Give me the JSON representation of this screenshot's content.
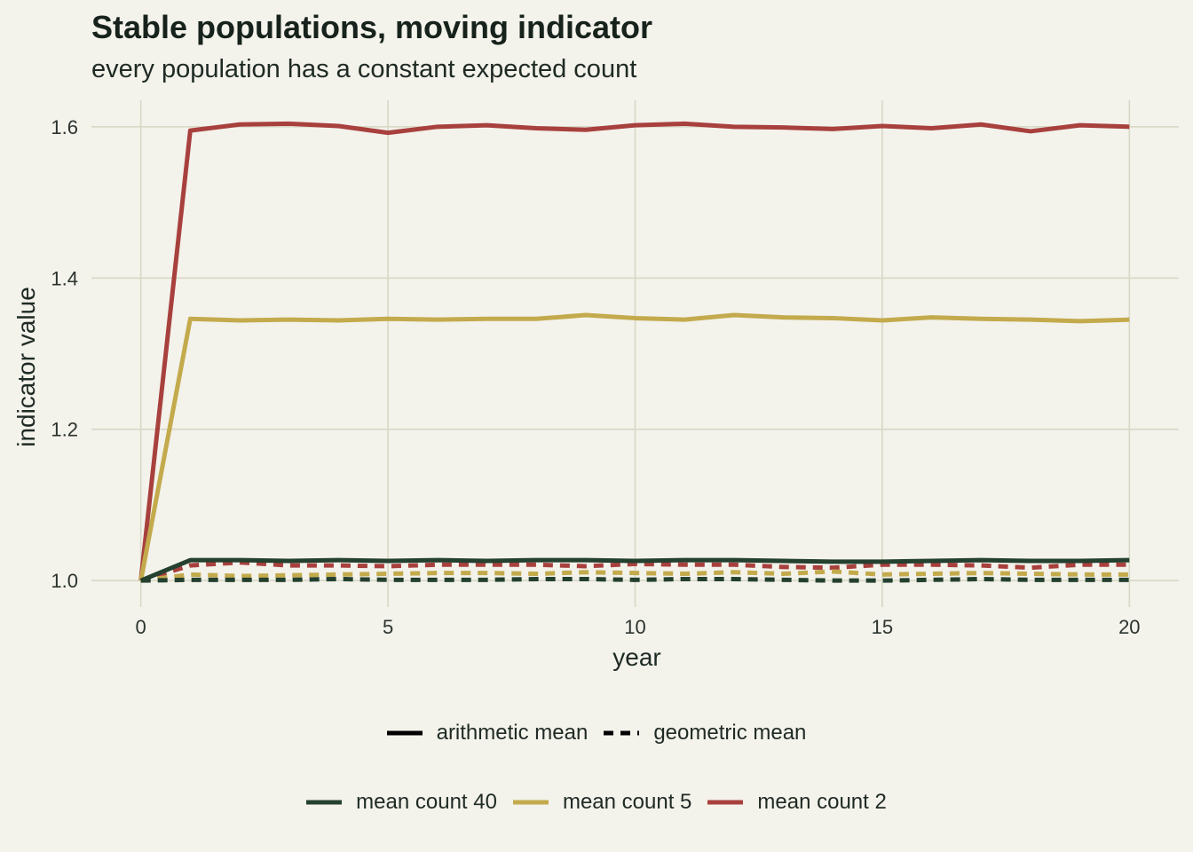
{
  "chart_data": {
    "type": "line",
    "title": "Stable populations, moving indicator",
    "subtitle": "every population has a constant expected count",
    "xlabel": "year",
    "ylabel": "indicator value",
    "xlim": [
      -1,
      21
    ],
    "ylim": [
      0.965,
      1.635
    ],
    "xticks": [
      0,
      5,
      10,
      15,
      20
    ],
    "yticks": [
      1.0,
      1.2,
      1.4,
      1.6
    ],
    "x": [
      0,
      1,
      2,
      3,
      4,
      5,
      6,
      7,
      8,
      9,
      10,
      11,
      12,
      13,
      14,
      15,
      16,
      17,
      18,
      19,
      20
    ],
    "grid": true,
    "legend_position": "bottom",
    "linetype_legend": [
      {
        "label": "arithmetic mean",
        "style": "solid"
      },
      {
        "label": "geometric mean",
        "style": "dashed"
      }
    ],
    "color_legend": [
      {
        "label": "mean count 40",
        "color": "#24402f"
      },
      {
        "label": "mean count 5",
        "color": "#c3aa4c"
      },
      {
        "label": "mean count 2",
        "color": "#a8403d"
      }
    ],
    "series": [
      {
        "name": "mean count 2",
        "mean": "arithmetic mean",
        "color": "#a8403d",
        "style": "solid",
        "values": [
          1.0,
          1.595,
          1.603,
          1.604,
          1.601,
          1.592,
          1.6,
          1.602,
          1.598,
          1.596,
          1.602,
          1.604,
          1.6,
          1.599,
          1.597,
          1.601,
          1.598,
          1.603,
          1.594,
          1.602,
          1.6
        ]
      },
      {
        "name": "mean count 5",
        "mean": "arithmetic mean",
        "color": "#c3aa4c",
        "style": "solid",
        "values": [
          1.0,
          1.346,
          1.344,
          1.345,
          1.344,
          1.346,
          1.345,
          1.346,
          1.346,
          1.351,
          1.347,
          1.345,
          1.351,
          1.348,
          1.347,
          1.344,
          1.348,
          1.346,
          1.345,
          1.343,
          1.345
        ]
      },
      {
        "name": "mean count 40",
        "mean": "arithmetic mean",
        "color": "#24402f",
        "style": "solid",
        "values": [
          1.0,
          1.027,
          1.027,
          1.026,
          1.027,
          1.026,
          1.027,
          1.026,
          1.027,
          1.027,
          1.026,
          1.027,
          1.027,
          1.026,
          1.025,
          1.025,
          1.026,
          1.027,
          1.026,
          1.026,
          1.027
        ]
      },
      {
        "name": "mean count 2",
        "mean": "geometric mean",
        "color": "#a8403d",
        "style": "dashed",
        "values": [
          1.0,
          1.02,
          1.024,
          1.02,
          1.02,
          1.019,
          1.021,
          1.021,
          1.021,
          1.019,
          1.022,
          1.021,
          1.021,
          1.018,
          1.017,
          1.021,
          1.021,
          1.02,
          1.017,
          1.021,
          1.021
        ]
      },
      {
        "name": "mean count 5",
        "mean": "geometric mean",
        "color": "#c3aa4c",
        "style": "dashed",
        "values": [
          1.0,
          1.008,
          1.006,
          1.007,
          1.008,
          1.009,
          1.01,
          1.01,
          1.009,
          1.011,
          1.01,
          1.009,
          1.011,
          1.009,
          1.012,
          1.008,
          1.009,
          1.01,
          1.009,
          1.008,
          1.008
        ]
      },
      {
        "name": "mean count 40",
        "mean": "geometric mean",
        "color": "#24402f",
        "style": "dashed",
        "values": [
          1.0,
          1.001,
          1.001,
          1.001,
          1.002,
          1.001,
          1.001,
          1.001,
          1.002,
          1.002,
          1.001,
          1.002,
          1.002,
          1.001,
          1.0,
          1.0,
          1.001,
          1.002,
          1.001,
          1.001,
          1.001
        ]
      }
    ]
  }
}
